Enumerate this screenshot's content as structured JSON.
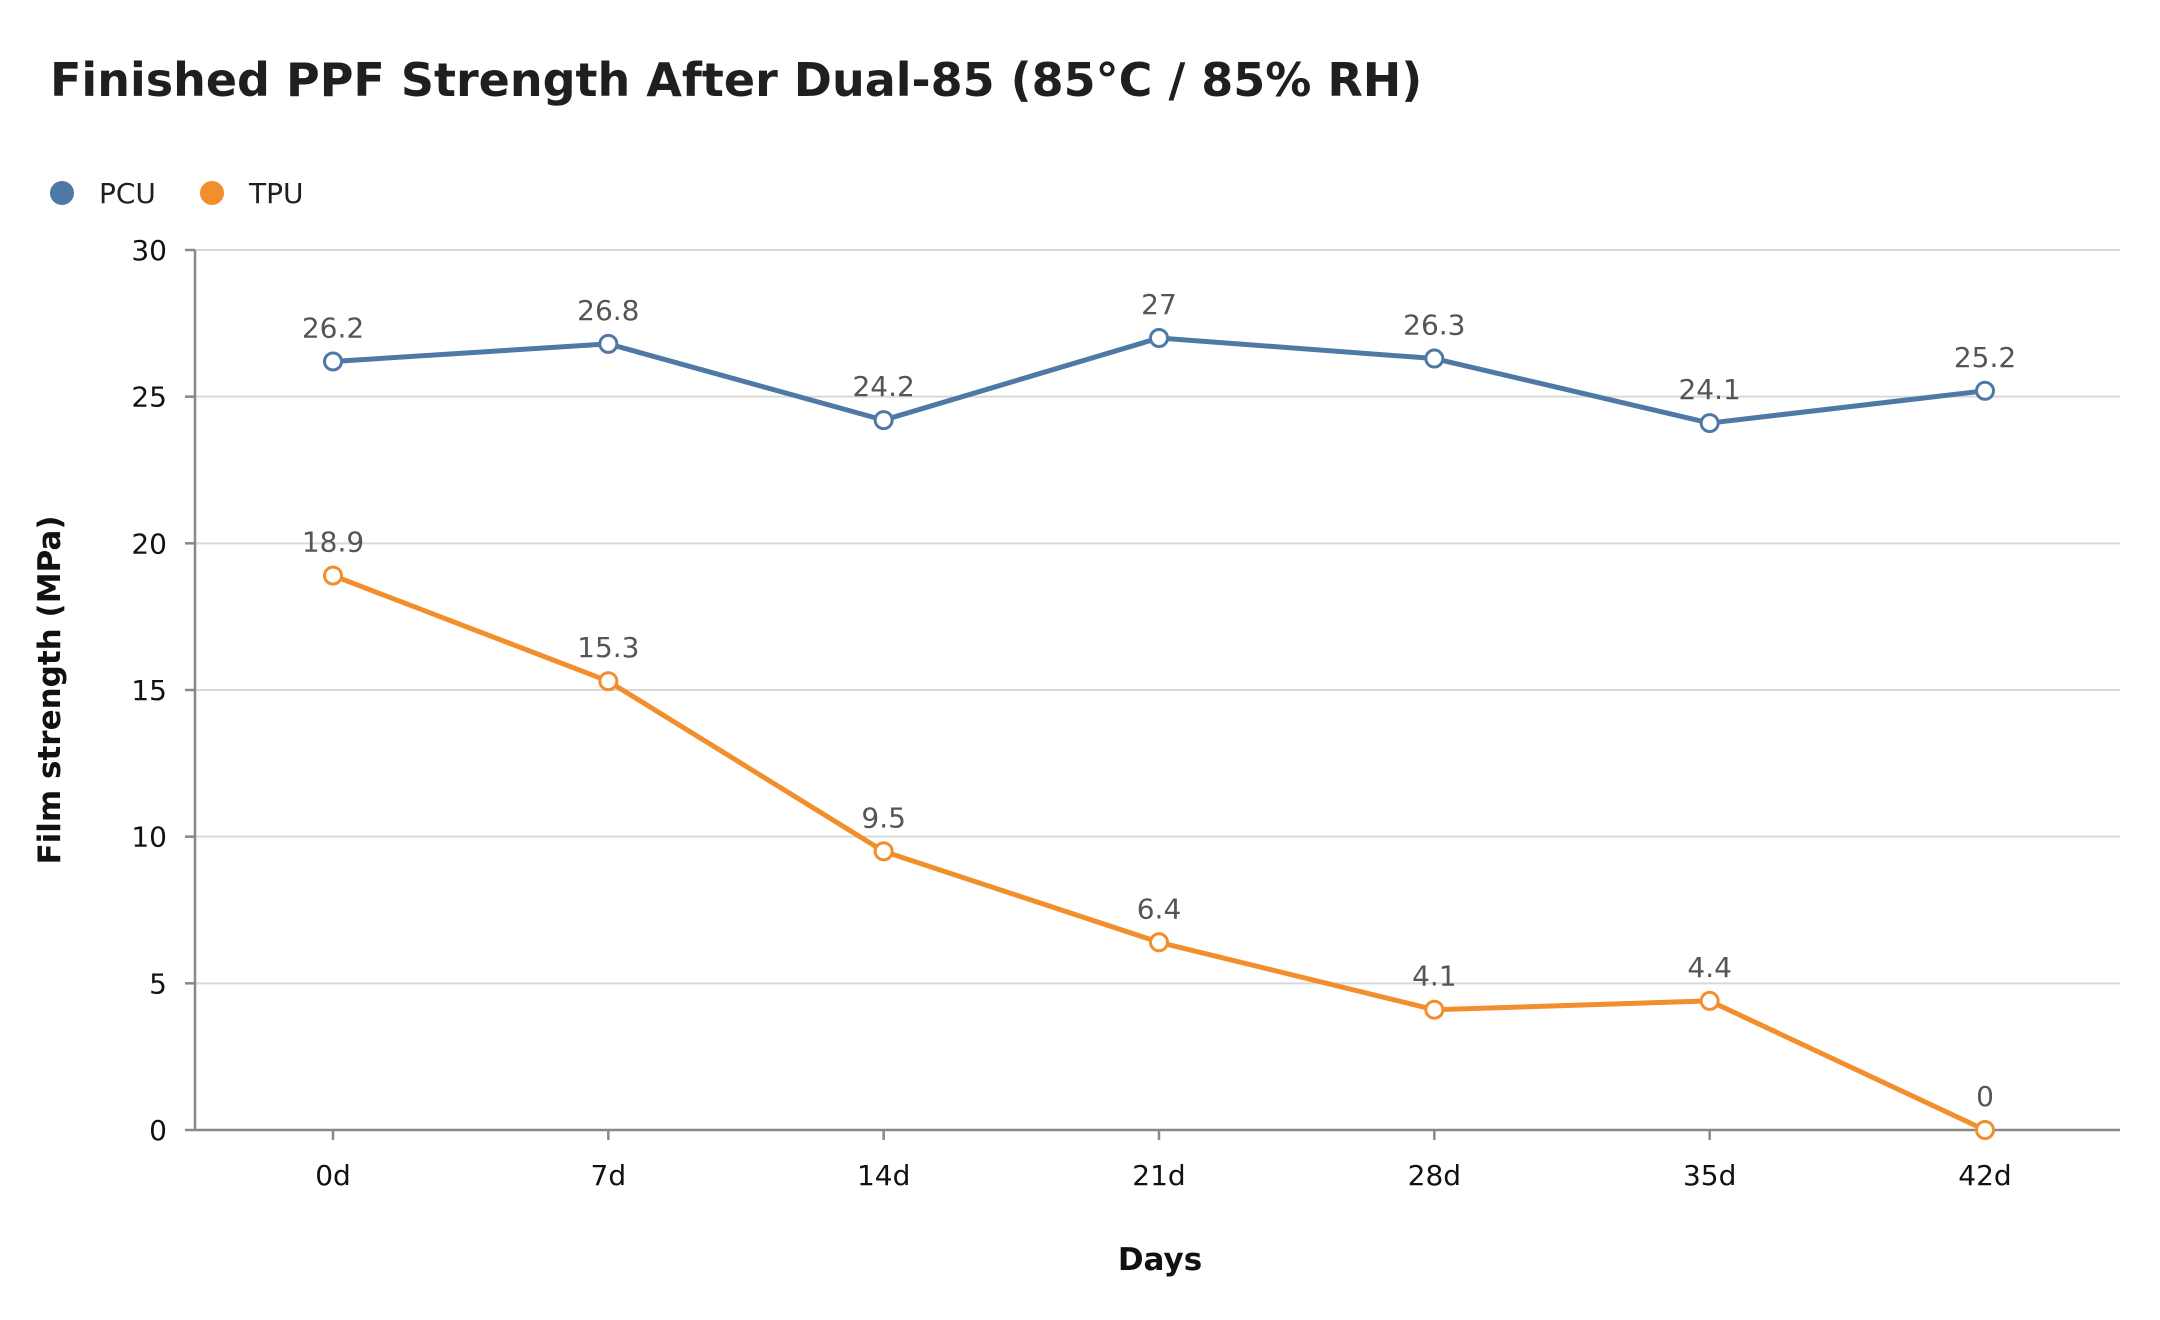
{
  "chart_data": {
    "type": "line",
    "title": "Finished PPF Strength After Dual-85 (85°C / 85% RH)",
    "xlabel": "Days",
    "ylabel": "Film strength (MPa)",
    "categories": [
      "0d",
      "7d",
      "14d",
      "21d",
      "28d",
      "35d",
      "42d"
    ],
    "ylim": [
      0,
      30
    ],
    "yticks": [
      0,
      5,
      10,
      15,
      20,
      25,
      30
    ],
    "grid": true,
    "legend_position": "top-left",
    "series": [
      {
        "name": "PCU",
        "color": "#4e79a7",
        "values": [
          26.2,
          26.8,
          24.2,
          27,
          26.3,
          24.1,
          25.2
        ]
      },
      {
        "name": "TPU",
        "color": "#f28e2b",
        "values": [
          18.9,
          15.3,
          9.5,
          6.4,
          4.1,
          4.4,
          0
        ]
      }
    ]
  }
}
